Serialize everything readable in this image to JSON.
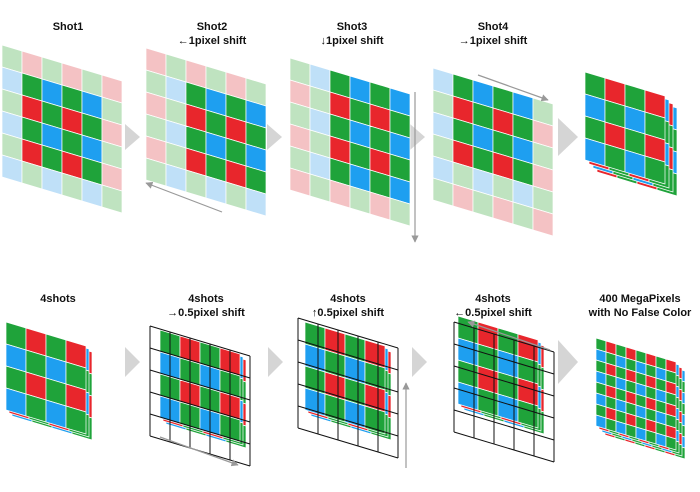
{
  "colors": {
    "red": "#e8262c",
    "green": "#1fa33a",
    "blue": "#1e9ff0",
    "pale_red": "#f4c2c4",
    "pale_green": "#bfe3c0",
    "pale_blue": "#bfe0f8",
    "arrow": "#d5d5d5",
    "line": "#999999",
    "grid": "#111111"
  },
  "row1": {
    "shot1": {
      "title": "Shot1",
      "subtitle": ""
    },
    "shot2": {
      "title": "Shot2",
      "subtitle": "←1pixel shift"
    },
    "shot3": {
      "title": "Shot3",
      "subtitle": "↓1pixel shift"
    },
    "shot4": {
      "title": "Shot4",
      "subtitle": "→1pixel shift"
    }
  },
  "row2": {
    "p1": {
      "title": "4shots",
      "subtitle": ""
    },
    "p2": {
      "title": "4shots",
      "subtitle": "→0.5pixel shift"
    },
    "p3": {
      "title": "4shots",
      "subtitle": "↑0.5pixel shift"
    },
    "p4": {
      "title": "4shots",
      "subtitle": "←0.5pixel shift"
    },
    "p5": {
      "title": "400 MegaPixels",
      "subtitle": "with No False Color"
    }
  },
  "bayer_pattern": [
    [
      "G",
      "R"
    ],
    [
      "B",
      "G"
    ]
  ],
  "icons": [
    "step-arrow-icon",
    "shift-direction-arrow-icon"
  ]
}
